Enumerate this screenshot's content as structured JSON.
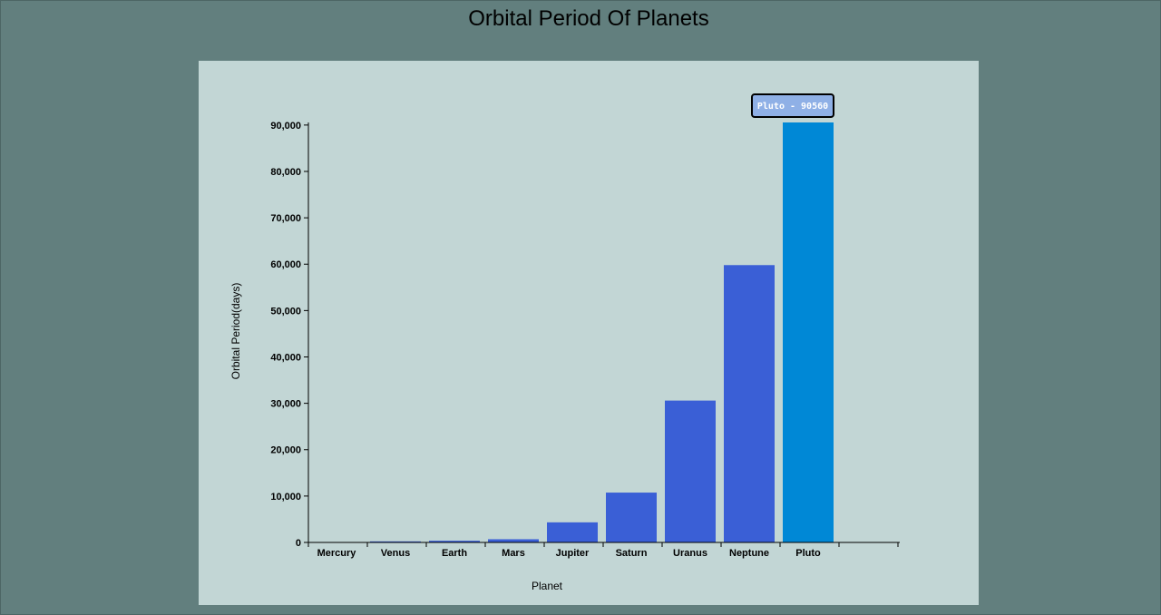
{
  "page": {
    "title": "Orbital Period Of Planets"
  },
  "tooltip": {
    "text": "Pluto - 90560"
  },
  "colors": {
    "bar": "#3a5fd6",
    "bar_highlight": "#0088d6",
    "tooltip_bg": "#8fb0e6",
    "panel_bg": "#c2d6d5",
    "page_bg": "#627f7e"
  },
  "chart_data": {
    "type": "bar",
    "title": "Orbital Period Of Planets",
    "xlabel": "Planet",
    "ylabel": "Orbital Period(days)",
    "categories": [
      "Mercury",
      "Venus",
      "Earth",
      "Mars",
      "Jupiter",
      "Saturn",
      "Uranus",
      "Neptune",
      "Pluto"
    ],
    "values": [
      88,
      224.7,
      365.2,
      687,
      4331,
      10747,
      30589,
      59800,
      90560
    ],
    "highlighted": "Pluto",
    "ylim": [
      0,
      90560
    ],
    "yticks": [
      0,
      10000,
      20000,
      30000,
      40000,
      50000,
      60000,
      70000,
      80000,
      90000
    ],
    "ytick_labels": [
      "0",
      "10,000",
      "20,000",
      "30,000",
      "40,000",
      "50,000",
      "60,000",
      "70,000",
      "80,000",
      "90,000"
    ],
    "grid": false,
    "legend": "none"
  }
}
